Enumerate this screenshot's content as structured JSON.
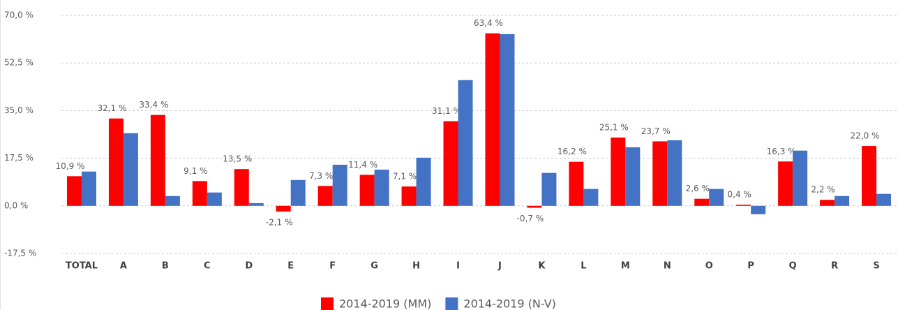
{
  "chart_data": {
    "type": "bar",
    "categories": [
      "TOTAL",
      "A",
      "B",
      "C",
      "D",
      "E",
      "F",
      "G",
      "H",
      "I",
      "J",
      "K",
      "L",
      "M",
      "N",
      "O",
      "P",
      "Q",
      "R",
      "S"
    ],
    "series": [
      {
        "name": "2014-2019 (MM)",
        "color": "#ff0000",
        "values": [
          10.9,
          32.1,
          33.4,
          9.1,
          13.5,
          -2.1,
          7.3,
          11.4,
          7.1,
          31.1,
          63.4,
          -0.7,
          16.2,
          25.1,
          23.7,
          2.6,
          0.4,
          16.3,
          2.2,
          22.0
        ],
        "value_labels": [
          "10,9 %",
          "32,1 %",
          "33,4 %",
          "9,1 %",
          "13,5 %",
          "-2,1 %",
          "7,3 %",
          "11,4 %",
          "7,1 %",
          "31,1 %",
          "63,4 %",
          "-0,7 %",
          "16,2 %",
          "25,1 %",
          "23,7 %",
          "2,6 %",
          "0,4 %",
          "16,3 %",
          "2,2 %",
          "22,0 %"
        ]
      },
      {
        "name": "2014-2019 (N-V)",
        "color": "#4472c4",
        "values": [
          12.6,
          26.7,
          3.6,
          4.9,
          1.0,
          9.5,
          15.1,
          13.3,
          17.7,
          46.2,
          63.1,
          12.1,
          6.2,
          21.5,
          24.1,
          6.2,
          -3.1,
          20.3,
          3.6,
          4.4
        ]
      }
    ],
    "ylim": [
      -17.5,
      70
    ],
    "yticks": [
      {
        "value": -17.5,
        "label": "-17,5 %"
      },
      {
        "value": 0,
        "label": "0,0 %"
      },
      {
        "value": 17.5,
        "label": "17,5 %"
      },
      {
        "value": 35,
        "label": "35,0 %"
      },
      {
        "value": 52.5,
        "label": "52,5 %"
      },
      {
        "value": 70,
        "label": "70,0 %"
      }
    ],
    "grid": true
  }
}
